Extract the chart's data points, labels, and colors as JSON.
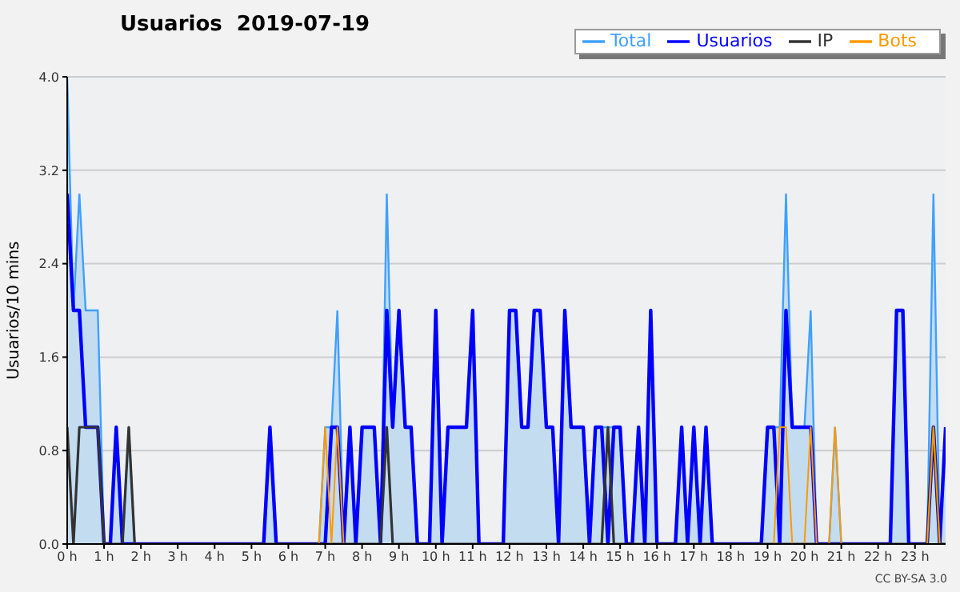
{
  "chart_data": {
    "type": "line",
    "title": "Usuarios  2019-07-19",
    "ylabel": "Usuarios/10 mins",
    "annotations": [
      "CC BY-SA 3.0"
    ],
    "xlim": [
      0,
      23.83
    ],
    "xticks": [
      {
        "value": 0,
        "label": "0 h"
      },
      {
        "value": 1,
        "label": "1 h"
      },
      {
        "value": 2,
        "label": "2 h"
      },
      {
        "value": 3,
        "label": "3 h"
      },
      {
        "value": 4,
        "label": "4 h"
      },
      {
        "value": 5,
        "label": "5 h"
      },
      {
        "value": 6,
        "label": "6 h"
      },
      {
        "value": 7,
        "label": "7 h"
      },
      {
        "value": 8,
        "label": "8 h"
      },
      {
        "value": 9,
        "label": "9 h"
      },
      {
        "value": 10,
        "label": "10 h"
      },
      {
        "value": 11,
        "label": "11 h"
      },
      {
        "value": 12,
        "label": "12 h"
      },
      {
        "value": 13,
        "label": "13 h"
      },
      {
        "value": 14,
        "label": "14 h"
      },
      {
        "value": 15,
        "label": "15 h"
      },
      {
        "value": 16,
        "label": "16 h"
      },
      {
        "value": 17,
        "label": "17 h"
      },
      {
        "value": 18,
        "label": "18 h"
      },
      {
        "value": 19,
        "label": "19 h"
      },
      {
        "value": 20,
        "label": "20 h"
      },
      {
        "value": 21,
        "label": "21 h"
      },
      {
        "value": 22,
        "label": "22 h"
      },
      {
        "value": 23,
        "label": "23 h"
      }
    ],
    "ylim": [
      0,
      4
    ],
    "yticks": [
      {
        "value": 0,
        "label": "0.0"
      },
      {
        "value": 0.8,
        "label": "0.8"
      },
      {
        "value": 1.6,
        "label": "1.6"
      },
      {
        "value": 2.4,
        "label": "2.4"
      },
      {
        "value": 3.2,
        "label": "3.2"
      },
      {
        "value": 4,
        "label": "4.0"
      }
    ],
    "grid": "y",
    "legend": "top right",
    "marker": "none",
    "line_style": "solid",
    "series": [
      {
        "name": "Total",
        "type": "area",
        "color": "#3fa0ff",
        "x": [
          0,
          0.17,
          0.33,
          0.5,
          0.67,
          0.83,
          1,
          1.17,
          1.33,
          1.5,
          1.67,
          1.83,
          5.33,
          5.5,
          5.67,
          6.83,
          7,
          7.17,
          7.33,
          7.5,
          7.67,
          7.83,
          8,
          8.17,
          8.33,
          8.5,
          8.67,
          8.83,
          9,
          9.17,
          9.33,
          9.5,
          9.83,
          10,
          10.17,
          10.33,
          10.5,
          10.67,
          10.83,
          11,
          11.17,
          11.83,
          12,
          12.17,
          12.33,
          12.5,
          12.67,
          12.83,
          13,
          13.17,
          13.33,
          13.5,
          13.67,
          13.83,
          14,
          14.17,
          14.33,
          14.5,
          14.67,
          14.83,
          15,
          15.17,
          15.33,
          15.5,
          15.67,
          15.83,
          16,
          16.5,
          16.67,
          16.83,
          17,
          17.17,
          17.33,
          17.5,
          18.83,
          19,
          19.17,
          19.33,
          19.5,
          19.67,
          19.83,
          20,
          20.17,
          20.33,
          20.67,
          20.83,
          21,
          22.33,
          22.5,
          22.67,
          22.83,
          23.33,
          23.5,
          23.67,
          23.83
        ],
        "values": [
          4,
          2,
          3,
          2,
          2,
          2,
          0,
          0,
          1,
          0,
          1,
          0,
          0,
          1,
          0,
          0,
          1,
          1,
          2,
          0,
          1,
          0,
          1,
          1,
          1,
          0,
          3,
          1,
          2,
          1,
          1,
          0,
          0,
          2,
          0,
          1,
          1,
          1,
          1,
          2,
          0,
          0,
          2,
          2,
          1,
          1,
          2,
          2,
          1,
          1,
          0,
          2,
          1,
          1,
          1,
          0,
          1,
          1,
          1,
          1,
          1,
          0,
          0,
          1,
          0,
          2,
          0,
          0,
          1,
          0,
          1,
          0,
          1,
          0,
          0,
          1,
          1,
          1,
          3,
          1,
          1,
          1,
          2,
          0,
          0,
          1,
          0,
          0,
          2,
          2,
          0,
          0,
          3,
          0,
          1
        ]
      },
      {
        "name": "Usuarios",
        "color": "#0000ff",
        "x": [
          0,
          0.17,
          0.33,
          0.5,
          0.67,
          0.83,
          1,
          1.17,
          1.33,
          1.5,
          5.33,
          5.5,
          5.67,
          7,
          7.17,
          7.33,
          7.5,
          7.67,
          7.83,
          8,
          8.17,
          8.33,
          8.5,
          8.67,
          8.83,
          9,
          9.17,
          9.33,
          9.5,
          9.83,
          10,
          10.17,
          10.33,
          10.5,
          10.67,
          10.83,
          11,
          11.17,
          11.83,
          12,
          12.17,
          12.33,
          12.5,
          12.67,
          12.83,
          13,
          13.17,
          13.33,
          13.5,
          13.67,
          13.83,
          14,
          14.17,
          14.33,
          14.5,
          14.67,
          14.83,
          15,
          15.17,
          15.33,
          15.5,
          15.67,
          15.83,
          16,
          16.5,
          16.67,
          16.83,
          17,
          17.17,
          17.33,
          17.5,
          18.83,
          19,
          19.17,
          19.33,
          19.5,
          19.67,
          19.83,
          20,
          20.17,
          20.33,
          22.33,
          22.5,
          22.67,
          22.83,
          23.33,
          23.5,
          23.67,
          23.83
        ],
        "values": [
          3,
          2,
          2,
          1,
          1,
          1,
          0,
          0,
          1,
          0,
          0,
          1,
          0,
          0,
          1,
          1,
          0,
          1,
          0,
          1,
          1,
          1,
          0,
          2,
          1,
          2,
          1,
          1,
          0,
          0,
          2,
          0,
          1,
          1,
          1,
          1,
          2,
          0,
          0,
          2,
          2,
          1,
          1,
          2,
          2,
          1,
          1,
          0,
          2,
          1,
          1,
          1,
          0,
          1,
          1,
          0,
          1,
          1,
          0,
          0,
          1,
          0,
          2,
          0,
          0,
          1,
          0,
          1,
          0,
          1,
          0,
          0,
          1,
          1,
          0,
          2,
          1,
          1,
          1,
          1,
          0,
          0,
          2,
          2,
          0,
          0,
          1,
          0,
          1
        ]
      },
      {
        "name": "IP",
        "color": "#333333",
        "x": [
          0,
          0.17,
          0.33,
          0.5,
          0.67,
          0.83,
          1,
          1.5,
          1.67,
          1.83,
          8.5,
          8.67,
          8.83,
          14.5,
          14.67,
          14.83,
          23.33,
          23.5,
          23.67,
          23.83
        ],
        "values": [
          1,
          0,
          1,
          1,
          1,
          1,
          0,
          0,
          1,
          0,
          0,
          1,
          0,
          0,
          1,
          0,
          0,
          1,
          0,
          0
        ]
      },
      {
        "name": "Bots",
        "color": "#ff9900",
        "x": [
          0,
          6.83,
          7,
          7.17,
          7.33,
          7.5,
          19.17,
          19.33,
          19.5,
          19.67,
          20,
          20.17,
          20.33,
          20.67,
          20.83,
          21,
          23.33,
          23.5,
          23.67,
          23.83
        ],
        "values": [
          0,
          0,
          1,
          0,
          1,
          0,
          0,
          1,
          1,
          0,
          0,
          1,
          0,
          0,
          1,
          0,
          0,
          1,
          0,
          0
        ]
      }
    ]
  }
}
